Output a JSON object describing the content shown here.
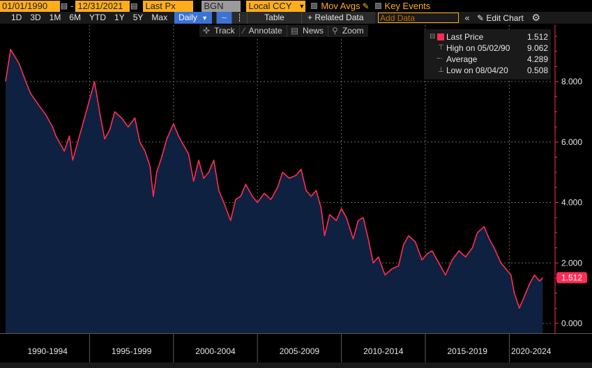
{
  "toolbar1": {
    "start_date": "01/01/1990",
    "separator": "-",
    "end_date": "12/31/2021",
    "field": "Last Px",
    "source": "BGN",
    "currency": "Local CCY",
    "mov_avgs": "Mov Avgs",
    "key_events": "Key Events"
  },
  "toolbar2": {
    "periods": [
      "1D",
      "3D",
      "1M",
      "6M",
      "YTD",
      "1Y",
      "5Y",
      "Max"
    ],
    "frequency": "Daily",
    "table": "Table",
    "related_data": "+ Related Data",
    "add_data_placeholder": "Add Data",
    "collapse": "«",
    "edit_chart": "Edit Chart"
  },
  "subbar": {
    "track": "Track",
    "annotate": "Annotate",
    "news": "News",
    "zoom": "Zoom"
  },
  "legend": {
    "rows": [
      {
        "name": "Last Price",
        "value": "1.512"
      },
      {
        "name": "High on 05/02/90",
        "value": "9.062"
      },
      {
        "name": "Average",
        "value": "4.289"
      },
      {
        "name": "Low on 08/04/20",
        "value": "0.508"
      }
    ]
  },
  "colors": {
    "line": "#ff2d55",
    "area": "#0f2140",
    "accent": "#ffae1a",
    "active": "#3b72d6"
  },
  "chart_data": {
    "type": "area",
    "y_ticks": [
      "8.000",
      "6.000",
      "4.000",
      "2.000",
      "0.000"
    ],
    "ylim": [
      -0.3,
      10.0
    ],
    "x_labels": [
      "1990-1994",
      "1995-1999",
      "2000-2004",
      "2005-2009",
      "2010-2014",
      "2015-2019",
      "2020-2024"
    ],
    "last_value_label": "1.512",
    "series": [
      {
        "name": "Last Price",
        "points": [
          [
            1990.0,
            8.0
          ],
          [
            1990.3,
            9.062
          ],
          [
            1990.8,
            8.6
          ],
          [
            1991.2,
            8.0
          ],
          [
            1991.5,
            7.6
          ],
          [
            1992.0,
            7.2
          ],
          [
            1992.4,
            6.9
          ],
          [
            1992.8,
            6.5
          ],
          [
            1993.0,
            6.2
          ],
          [
            1993.5,
            5.7
          ],
          [
            1993.8,
            6.2
          ],
          [
            1994.0,
            5.4
          ],
          [
            1994.3,
            6.0
          ],
          [
            1994.7,
            6.8
          ],
          [
            1995.0,
            7.4
          ],
          [
            1995.3,
            8.0
          ],
          [
            1995.6,
            7.0
          ],
          [
            1995.9,
            6.1
          ],
          [
            1996.2,
            6.4
          ],
          [
            1996.5,
            7.0
          ],
          [
            1996.9,
            6.8
          ],
          [
            1997.3,
            6.5
          ],
          [
            1997.7,
            6.8
          ],
          [
            1998.0,
            6.0
          ],
          [
            1998.3,
            5.7
          ],
          [
            1998.6,
            5.2
          ],
          [
            1998.8,
            4.2
          ],
          [
            1999.0,
            5.0
          ],
          [
            1999.3,
            5.5
          ],
          [
            1999.6,
            6.1
          ],
          [
            2000.0,
            6.6
          ],
          [
            2000.3,
            6.2
          ],
          [
            2000.6,
            5.9
          ],
          [
            2000.9,
            5.6
          ],
          [
            2001.2,
            4.7
          ],
          [
            2001.5,
            5.4
          ],
          [
            2001.8,
            4.8
          ],
          [
            2002.1,
            5.0
          ],
          [
            2002.4,
            5.4
          ],
          [
            2002.7,
            4.4
          ],
          [
            2003.0,
            4.0
          ],
          [
            2003.4,
            3.4
          ],
          [
            2003.7,
            4.1
          ],
          [
            2004.0,
            4.2
          ],
          [
            2004.3,
            4.6
          ],
          [
            2004.7,
            4.2
          ],
          [
            2005.0,
            4.0
          ],
          [
            2005.4,
            4.3
          ],
          [
            2005.8,
            4.1
          ],
          [
            2006.2,
            4.5
          ],
          [
            2006.5,
            5.0
          ],
          [
            2006.9,
            4.8
          ],
          [
            2007.3,
            4.9
          ],
          [
            2007.6,
            5.1
          ],
          [
            2007.9,
            4.4
          ],
          [
            2008.2,
            4.2
          ],
          [
            2008.5,
            4.4
          ],
          [
            2008.8,
            3.8
          ],
          [
            2009.0,
            2.9
          ],
          [
            2009.3,
            3.6
          ],
          [
            2009.7,
            3.4
          ],
          [
            2010.0,
            3.8
          ],
          [
            2010.3,
            3.5
          ],
          [
            2010.7,
            2.8
          ],
          [
            2011.0,
            3.4
          ],
          [
            2011.3,
            3.5
          ],
          [
            2011.6,
            2.8
          ],
          [
            2011.9,
            2.0
          ],
          [
            2012.2,
            2.2
          ],
          [
            2012.6,
            1.6
          ],
          [
            2013.0,
            1.8
          ],
          [
            2013.4,
            1.9
          ],
          [
            2013.7,
            2.6
          ],
          [
            2014.0,
            2.9
          ],
          [
            2014.4,
            2.7
          ],
          [
            2014.8,
            2.1
          ],
          [
            2015.1,
            2.3
          ],
          [
            2015.4,
            2.4
          ],
          [
            2015.8,
            2.0
          ],
          [
            2016.2,
            1.6
          ],
          [
            2016.6,
            2.1
          ],
          [
            2017.0,
            2.4
          ],
          [
            2017.4,
            2.2
          ],
          [
            2017.8,
            2.5
          ],
          [
            2018.1,
            3.0
          ],
          [
            2018.5,
            3.2
          ],
          [
            2018.8,
            2.8
          ],
          [
            2019.1,
            2.5
          ],
          [
            2019.5,
            2.0
          ],
          [
            2019.8,
            1.8
          ],
          [
            2020.1,
            1.6
          ],
          [
            2020.3,
            1.0
          ],
          [
            2020.6,
            0.508
          ],
          [
            2020.9,
            0.9
          ],
          [
            2021.2,
            1.3
          ],
          [
            2021.5,
            1.6
          ],
          [
            2021.8,
            1.4
          ],
          [
            2021.99,
            1.512
          ]
        ]
      }
    ]
  }
}
